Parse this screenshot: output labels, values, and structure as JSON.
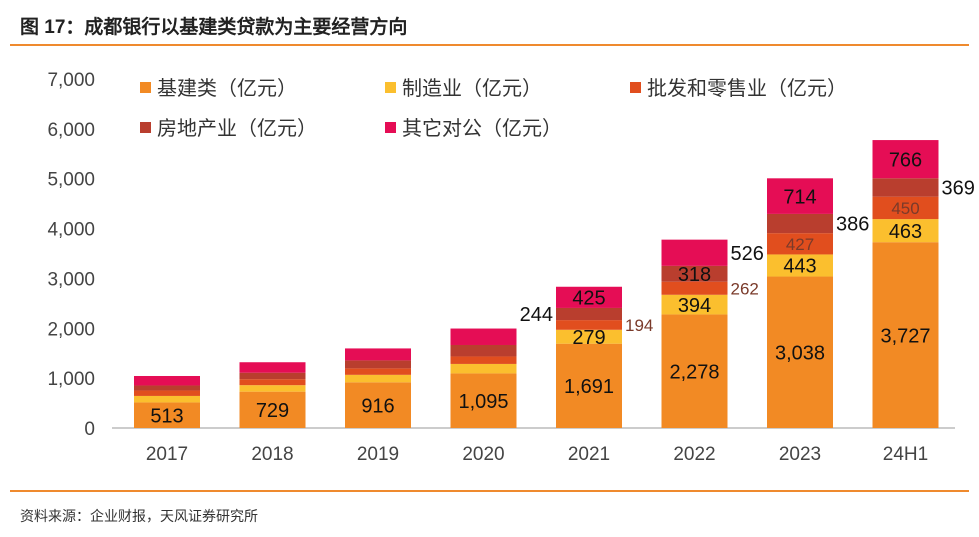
{
  "title": "图 17：成都银行以基建类贷款为主要经营方向",
  "source": "资料来源：企业财报，天风证券研究所",
  "chart_data": {
    "type": "bar",
    "stacked": true,
    "categories": [
      "2017",
      "2018",
      "2019",
      "2020",
      "2021",
      "2022",
      "2023",
      "24H1"
    ],
    "ylim": [
      0,
      7000
    ],
    "yticks": [
      0,
      1000,
      2000,
      3000,
      4000,
      5000,
      6000,
      7000
    ],
    "ytick_labels": [
      "0",
      "1,000",
      "2,000",
      "3,000",
      "4,000",
      "5,000",
      "6,000",
      "7,000"
    ],
    "legend_position": "top",
    "series": [
      {
        "name": "基建类（亿元）",
        "color": "#f28a24",
        "values": [
          513,
          729,
          916,
          1095,
          1691,
          2278,
          3038,
          3727
        ],
        "labels": [
          "513",
          "729",
          "916",
          "1,095",
          "1,691",
          "2,278",
          "3,038",
          "3,727"
        ]
      },
      {
        "name": "制造业（亿元）",
        "color": "#fbbf2e",
        "values": [
          130,
          130,
          150,
          190,
          279,
          394,
          443,
          463
        ],
        "labels": [
          null,
          null,
          null,
          null,
          "279",
          "394",
          "443",
          "463"
        ]
      },
      {
        "name": "批发和零售业（亿元）",
        "color": "#e14e1e",
        "values": [
          110,
          120,
          130,
          150,
          194,
          262,
          427,
          450
        ],
        "labels": [
          null,
          null,
          null,
          null,
          "194",
          "262",
          "427",
          "450"
        ]
      },
      {
        "name": "房地产业（亿元）",
        "color": "#b93e2e",
        "values": [
          100,
          130,
          160,
          230,
          244,
          318,
          386,
          369
        ],
        "labels": [
          null,
          null,
          null,
          null,
          "244",
          "318",
          "386",
          "369"
        ]
      },
      {
        "name": "其它对公（亿元）",
        "color": "#e50d55",
        "values": [
          190,
          210,
          240,
          330,
          425,
          526,
          714,
          766
        ],
        "labels": [
          null,
          null,
          null,
          null,
          "425",
          "526",
          "714",
          "766"
        ]
      }
    ]
  }
}
